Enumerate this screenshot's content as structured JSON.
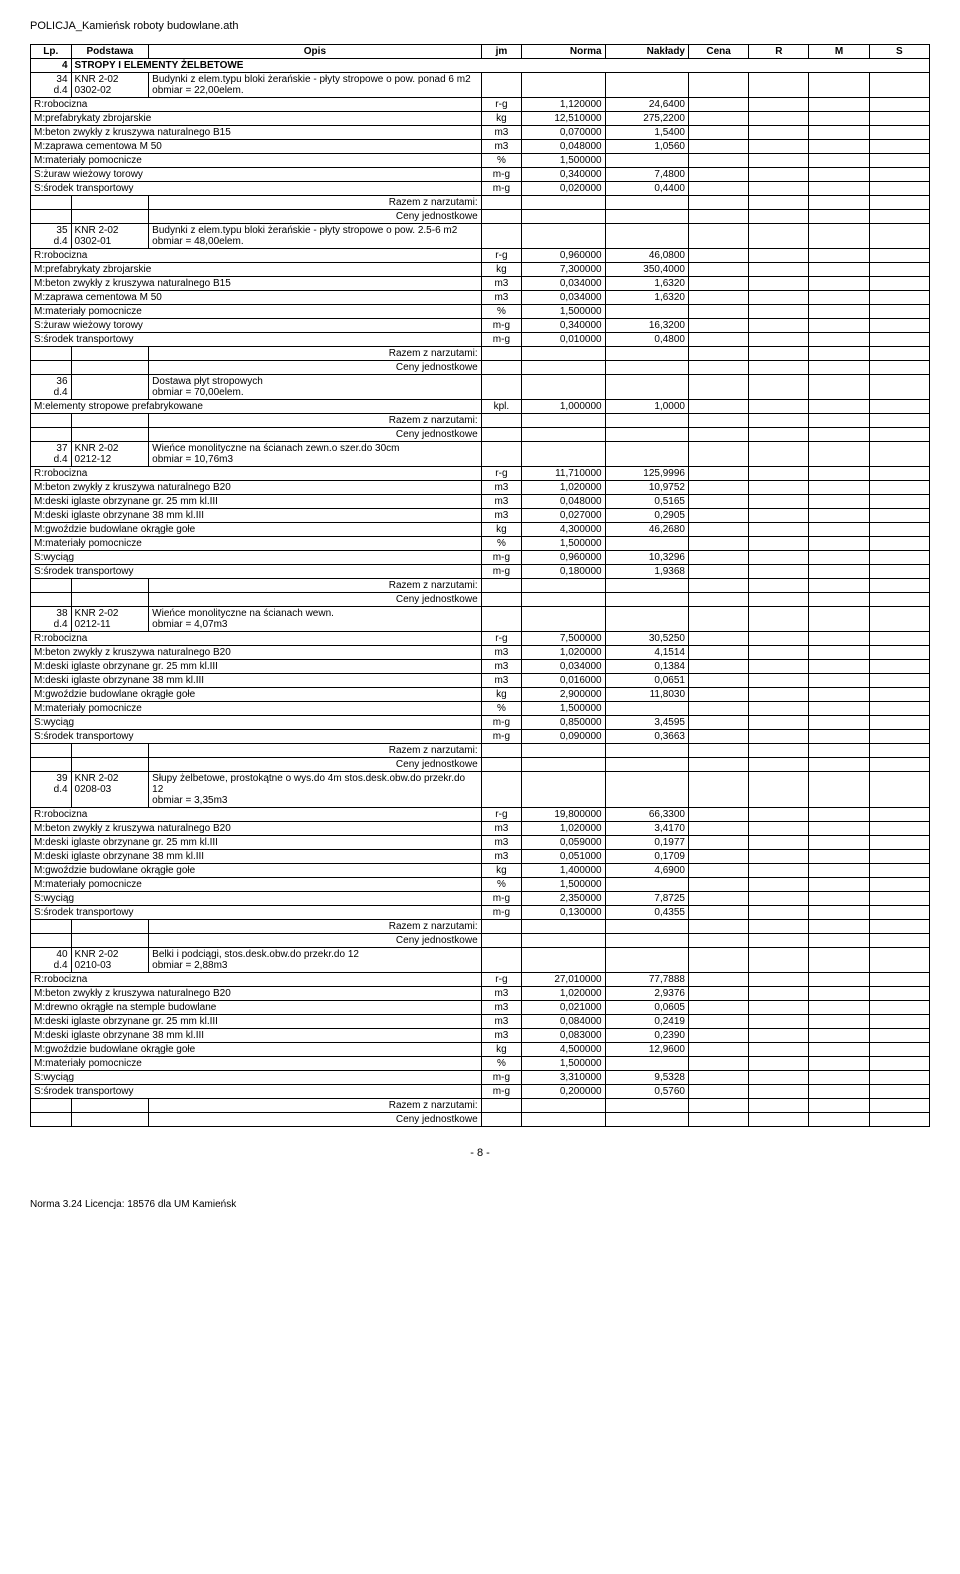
{
  "header": "POLICJA_Kamieńsk roboty budowlane.ath",
  "columns": [
    "Lp.",
    "Podstawa",
    "Opis",
    "jm",
    "Norma",
    "Nakłady",
    "Cena",
    "R",
    "M",
    "S"
  ],
  "section": {
    "lp": "4",
    "title": "STROPY I ELEMENTY ŻELBETOWE"
  },
  "items": [
    {
      "lp": "34",
      "lp2": "d.4",
      "podstawa": "KNR 2-02",
      "podstawa2": "0302-02",
      "opis": "Budynki z elem.typu bloki żerańskie - płyty stropowe o pow. ponad 6 m2",
      "obmiar": "obmiar = 22,00elem.",
      "rows": [
        {
          "name": "R:robocizna",
          "jm": "r-g",
          "norma": "1,120000",
          "naklady": "24,6400"
        },
        {
          "name": "M:prefabrykaty zbrojarskie",
          "jm": "kg",
          "norma": "12,510000",
          "naklady": "275,2200"
        },
        {
          "name": "M:beton zwykły z kruszywa naturalnego B15",
          "jm": "m3",
          "norma": "0,070000",
          "naklady": "1,5400"
        },
        {
          "name": "M:zaprawa cementowa M 50",
          "jm": "m3",
          "norma": "0,048000",
          "naklady": "1,0560"
        },
        {
          "name": "M:materiały pomocnicze",
          "jm": "%",
          "norma": "1,500000",
          "naklady": ""
        },
        {
          "name": "S:żuraw wieżowy torowy",
          "jm": "m-g",
          "norma": "0,340000",
          "naklady": "7,4800"
        },
        {
          "name": "S:środek transportowy",
          "jm": "m-g",
          "norma": "0,020000",
          "naklady": "0,4400"
        }
      ]
    },
    {
      "lp": "35",
      "lp2": "d.4",
      "podstawa": "KNR 2-02",
      "podstawa2": "0302-01",
      "opis": "Budynki z elem.typu bloki żerańskie - płyty stropowe o pow. 2.5-6 m2",
      "obmiar": "obmiar = 48,00elem.",
      "rows": [
        {
          "name": "R:robocizna",
          "jm": "r-g",
          "norma": "0,960000",
          "naklady": "46,0800"
        },
        {
          "name": "M:prefabrykaty zbrojarskie",
          "jm": "kg",
          "norma": "7,300000",
          "naklady": "350,4000"
        },
        {
          "name": "M:beton zwykły z kruszywa naturalnego B15",
          "jm": "m3",
          "norma": "0,034000",
          "naklady": "1,6320"
        },
        {
          "name": "M:zaprawa cementowa M 50",
          "jm": "m3",
          "norma": "0,034000",
          "naklady": "1,6320"
        },
        {
          "name": "M:materiały pomocnicze",
          "jm": "%",
          "norma": "1,500000",
          "naklady": ""
        },
        {
          "name": "S:żuraw wieżowy torowy",
          "jm": "m-g",
          "norma": "0,340000",
          "naklady": "16,3200"
        },
        {
          "name": "S:środek transportowy",
          "jm": "m-g",
          "norma": "0,010000",
          "naklady": "0,4800"
        }
      ]
    },
    {
      "lp": "36",
      "lp2": "d.4",
      "podstawa": "",
      "podstawa2": "",
      "opis": "Dostawa płyt stropowych",
      "obmiar": "obmiar = 70,00elem.",
      "rows": [
        {
          "name": "M:elementy stropowe prefabrykowane",
          "jm": "kpl.",
          "norma": "1,000000",
          "naklady": "1,0000"
        }
      ]
    },
    {
      "lp": "37",
      "lp2": "d.4",
      "podstawa": "KNR 2-02",
      "podstawa2": "0212-12",
      "opis": "Wieńce monolityczne na ścianach zewn.o szer.do 30cm",
      "obmiar": "obmiar = 10,76m3",
      "rows": [
        {
          "name": "R:robocizna",
          "jm": "r-g",
          "norma": "11,710000",
          "naklady": "125,9996"
        },
        {
          "name": "M:beton zwykły z kruszywa naturalnego B20",
          "jm": "m3",
          "norma": "1,020000",
          "naklady": "10,9752"
        },
        {
          "name": "M:deski iglaste obrzynane gr. 25 mm kl.III",
          "jm": "m3",
          "norma": "0,048000",
          "naklady": "0,5165"
        },
        {
          "name": "M:deski iglaste obrzynane 38 mm kl.III",
          "jm": "m3",
          "norma": "0,027000",
          "naklady": "0,2905"
        },
        {
          "name": "M:gwoździe budowlane okrągłe gołe",
          "jm": "kg",
          "norma": "4,300000",
          "naklady": "46,2680"
        },
        {
          "name": "M:materiały pomocnicze",
          "jm": "%",
          "norma": "1,500000",
          "naklady": ""
        },
        {
          "name": "S:wyciąg",
          "jm": "m-g",
          "norma": "0,960000",
          "naklady": "10,3296"
        },
        {
          "name": "S:środek transportowy",
          "jm": "m-g",
          "norma": "0,180000",
          "naklady": "1,9368"
        }
      ]
    },
    {
      "lp": "38",
      "lp2": "d.4",
      "podstawa": "KNR 2-02",
      "podstawa2": "0212-11",
      "opis": "Wieńce monolityczne na ścianach wewn.",
      "obmiar": "obmiar = 4,07m3",
      "rows": [
        {
          "name": "R:robocizna",
          "jm": "r-g",
          "norma": "7,500000",
          "naklady": "30,5250"
        },
        {
          "name": "M:beton zwykły z kruszywa naturalnego B20",
          "jm": "m3",
          "norma": "1,020000",
          "naklady": "4,1514"
        },
        {
          "name": "M:deski iglaste obrzynane gr. 25 mm kl.III",
          "jm": "m3",
          "norma": "0,034000",
          "naklady": "0,1384"
        },
        {
          "name": "M:deski iglaste obrzynane 38 mm kl.III",
          "jm": "m3",
          "norma": "0,016000",
          "naklady": "0,0651"
        },
        {
          "name": "M:gwoździe budowlane okrągłe gołe",
          "jm": "kg",
          "norma": "2,900000",
          "naklady": "11,8030"
        },
        {
          "name": "M:materiały pomocnicze",
          "jm": "%",
          "norma": "1,500000",
          "naklady": ""
        },
        {
          "name": "S:wyciąg",
          "jm": "m-g",
          "norma": "0,850000",
          "naklady": "3,4595"
        },
        {
          "name": "S:środek transportowy",
          "jm": "m-g",
          "norma": "0,090000",
          "naklady": "0,3663"
        }
      ]
    },
    {
      "lp": "39",
      "lp2": "d.4",
      "podstawa": "KNR 2-02",
      "podstawa2": "0208-03",
      "opis": "Słupy żelbetowe, prostokątne o wys.do 4m stos.desk.obw.do przekr.do 12",
      "obmiar": "obmiar = 3,35m3",
      "rows": [
        {
          "name": "R:robocizna",
          "jm": "r-g",
          "norma": "19,800000",
          "naklady": "66,3300"
        },
        {
          "name": "M:beton zwykły z kruszywa naturalnego B20",
          "jm": "m3",
          "norma": "1,020000",
          "naklady": "3,4170"
        },
        {
          "name": "M:deski iglaste obrzynane gr. 25 mm kl.III",
          "jm": "m3",
          "norma": "0,059000",
          "naklady": "0,1977"
        },
        {
          "name": "M:deski iglaste obrzynane 38 mm kl.III",
          "jm": "m3",
          "norma": "0,051000",
          "naklady": "0,1709"
        },
        {
          "name": "M:gwoździe budowlane okrągłe gołe",
          "jm": "kg",
          "norma": "1,400000",
          "naklady": "4,6900"
        },
        {
          "name": "M:materiały pomocnicze",
          "jm": "%",
          "norma": "1,500000",
          "naklady": ""
        },
        {
          "name": "S:wyciąg",
          "jm": "m-g",
          "norma": "2,350000",
          "naklady": "7,8725"
        },
        {
          "name": "S:środek transportowy",
          "jm": "m-g",
          "norma": "0,130000",
          "naklady": "0,4355"
        }
      ]
    },
    {
      "lp": "40",
      "lp2": "d.4",
      "podstawa": "KNR 2-02",
      "podstawa2": "0210-03",
      "opis": "Belki i podciągi, stos.desk.obw.do przekr.do 12",
      "obmiar": "obmiar = 2,88m3",
      "rows": [
        {
          "name": "R:robocizna",
          "jm": "r-g",
          "norma": "27,010000",
          "naklady": "77,7888"
        },
        {
          "name": "M:beton zwykły z kruszywa naturalnego B20",
          "jm": "m3",
          "norma": "1,020000",
          "naklady": "2,9376"
        },
        {
          "name": "M:drewno okrągłe na stemple budowlane",
          "jm": "m3",
          "norma": "0,021000",
          "naklady": "0,0605"
        },
        {
          "name": "M:deski iglaste obrzynane gr. 25 mm kl.III",
          "jm": "m3",
          "norma": "0,084000",
          "naklady": "0,2419"
        },
        {
          "name": "M:deski iglaste obrzynane 38 mm kl.III",
          "jm": "m3",
          "norma": "0,083000",
          "naklady": "0,2390"
        },
        {
          "name": "M:gwoździe budowlane okrągłe gołe",
          "jm": "kg",
          "norma": "4,500000",
          "naklady": "12,9600"
        },
        {
          "name": "M:materiały pomocnicze",
          "jm": "%",
          "norma": "1,500000",
          "naklady": ""
        },
        {
          "name": "S:wyciąg",
          "jm": "m-g",
          "norma": "3,310000",
          "naklady": "9,5328"
        },
        {
          "name": "S:środek transportowy",
          "jm": "m-g",
          "norma": "0,200000",
          "naklady": "0,5760"
        }
      ]
    }
  ],
  "razem_label": "Razem z narzutami:",
  "ceny_label": "Ceny jednostkowe",
  "page_number": "- 8 -",
  "footer": "Norma 3.24 Licencja: 18576 dla UM Kamieńsk"
}
